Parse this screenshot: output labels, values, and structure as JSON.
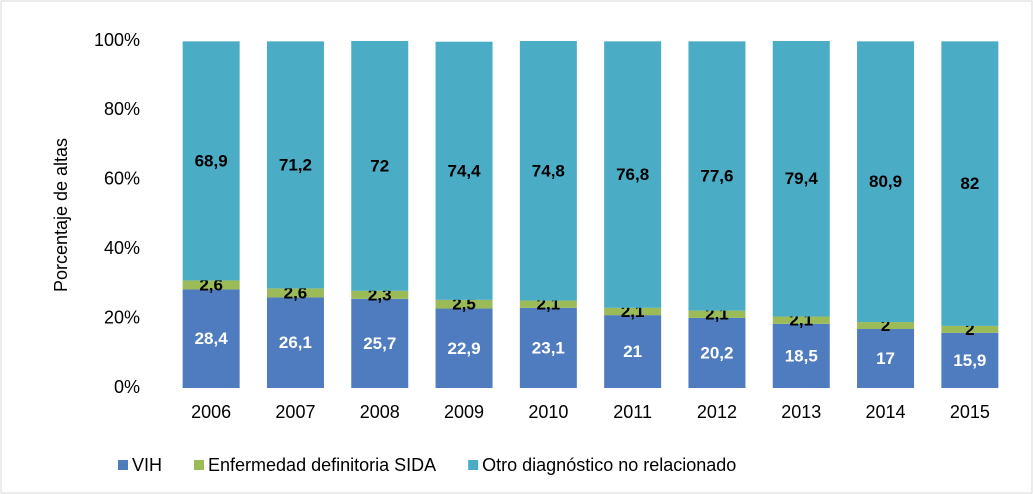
{
  "chart_data": {
    "type": "stacked-bar",
    "y_label": "Porcentaje de altas",
    "categories": [
      "2006",
      "2007",
      "2008",
      "2009",
      "2010",
      "2011",
      "2012",
      "2013",
      "2014",
      "2015"
    ],
    "series": [
      {
        "name": "VIH",
        "color": "#4f7cbe",
        "label_color": "#ffffff",
        "values": [
          28.4,
          26.1,
          25.7,
          22.9,
          23.1,
          21,
          20.2,
          18.5,
          17,
          15.9
        ],
        "value_labels": [
          "28,4",
          "26,1",
          "25,7",
          "22,9",
          "23,1",
          "21",
          "20,2",
          "18,5",
          "17",
          "15,9"
        ]
      },
      {
        "name": "Enfermedad definitoria SIDA",
        "color": "#9bbb59",
        "label_color": "#000000",
        "values": [
          2.6,
          2.6,
          2.3,
          2.5,
          2.1,
          2.1,
          2.1,
          2.1,
          2,
          2
        ],
        "value_labels": [
          "2,6",
          "2,6",
          "2,3",
          "2,5",
          "2,1",
          "2,1",
          "2,1",
          "2,1",
          "2",
          "2"
        ]
      },
      {
        "name": "Otro diagnóstico no relacionado",
        "color": "#4bacc6",
        "label_color": "#000000",
        "values": [
          68.9,
          71.2,
          72,
          74.4,
          74.8,
          76.8,
          77.6,
          79.4,
          80.9,
          82
        ],
        "value_labels": [
          "68,9",
          "71,2",
          "72",
          "74,4",
          "74,8",
          "76,8",
          "77,6",
          "79,4",
          "80,9",
          "82"
        ]
      }
    ],
    "ylim": [
      0,
      100
    ],
    "yticks": [
      {
        "value": 0,
        "label": "0%"
      },
      {
        "value": 20,
        "label": "20%"
      },
      {
        "value": 40,
        "label": "40%"
      },
      {
        "value": 60,
        "label": "60%"
      },
      {
        "value": 80,
        "label": "80%"
      },
      {
        "value": 100,
        "label": "100%"
      }
    ],
    "grid": false,
    "legend": "bottom"
  }
}
